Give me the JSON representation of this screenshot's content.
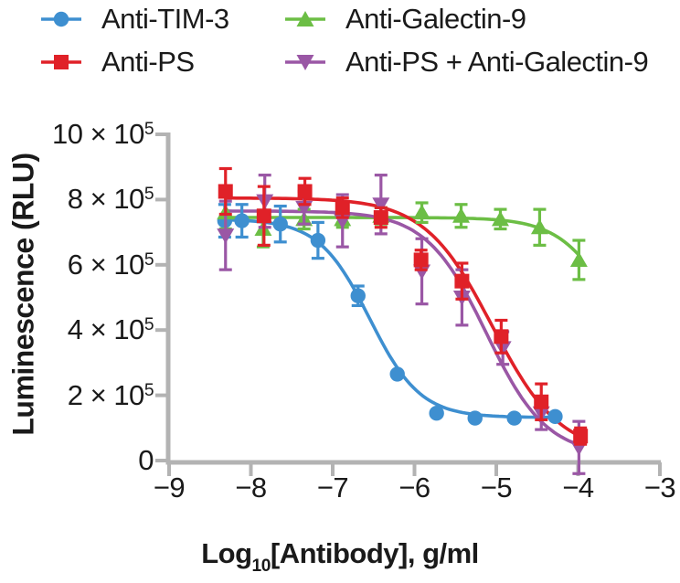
{
  "figure": {
    "background": "#ffffff",
    "text_color": "#1a1a1a",
    "axis_color": "#b3b3b3"
  },
  "legend": {
    "items": [
      {
        "label": "Anti-TIM-3",
        "color": "#3e8fd0",
        "marker": "circle"
      },
      {
        "label": "Anti-PS",
        "color": "#e02128",
        "marker": "square"
      },
      {
        "label": "Anti-Galectin-9",
        "color": "#6cbe45",
        "marker": "triangle-up"
      },
      {
        "label": "Anti-PS + Anti-Galectin-9",
        "color": "#9a57a5",
        "marker": "triangle-down"
      }
    ]
  },
  "axes": {
    "x": {
      "title": {
        "prefix": "Log",
        "sub": "10",
        "rest": "[Antibody], g/ml"
      },
      "min": -9,
      "max": -3,
      "ticks": [
        {
          "label": "−9",
          "value": -9
        },
        {
          "label": "−8",
          "value": -8
        },
        {
          "label": "−7",
          "value": -7
        },
        {
          "label": "−6",
          "value": -6
        },
        {
          "label": "−5",
          "value": -5
        },
        {
          "label": "−4",
          "value": -4
        },
        {
          "label": "−3",
          "value": -3
        }
      ]
    },
    "y": {
      "title": "Luminescence (RLU)",
      "min": 0,
      "max": 1000000,
      "ticks": [
        {
          "main": "10 × 10",
          "sup": "5",
          "value": 1000000
        },
        {
          "main": "8 × 10",
          "sup": "5",
          "value": 800000
        },
        {
          "main": "6 × 10",
          "sup": "5",
          "value": 600000
        },
        {
          "main": "4 × 10",
          "sup": "5",
          "value": 400000
        },
        {
          "main": "2 × 10",
          "sup": "5",
          "value": 200000
        },
        {
          "main": "0",
          "sup": "",
          "value": 0
        }
      ]
    }
  },
  "chart_data": {
    "type": "line",
    "title": "",
    "xlabel": "Log10[Antibody], g/ml",
    "ylabel": "Luminescence (RLU)",
    "xlim": [
      -9,
      -3
    ],
    "ylim": [
      0,
      1000000
    ],
    "grid": false,
    "legend_position": "top",
    "draw_order": [
      0,
      2,
      3,
      1
    ],
    "series": [
      {
        "name": "Anti-TIM-3",
        "color": "#3e8fd0",
        "marker": "circle",
        "x": [
          -8.32,
          -8.11,
          -7.64,
          -7.18,
          -6.69,
          -6.21,
          -5.73,
          -5.26,
          -4.78,
          -4.28
        ],
        "y": [
          735000,
          735000,
          725000,
          675000,
          505000,
          265000,
          145000,
          130000,
          130000,
          135000
        ],
        "err": [
          50000,
          50000,
          55000,
          55000,
          30000,
          0,
          0,
          0,
          0,
          0
        ],
        "fit": {
          "top": 740000,
          "bottom": 132000,
          "logec50": -6.55,
          "hill": 1.4,
          "range": [
            -8.32,
            -4.28
          ]
        }
      },
      {
        "name": "Anti-PS",
        "color": "#e02128",
        "marker": "square",
        "x": [
          -8.31,
          -7.84,
          -7.34,
          -6.88,
          -6.41,
          -5.92,
          -5.42,
          -4.94,
          -4.45,
          -3.97
        ],
        "y": [
          825000,
          750000,
          825000,
          775000,
          745000,
          615000,
          550000,
          380000,
          180000,
          75000
        ],
        "err": [
          70000,
          90000,
          40000,
          30000,
          30000,
          30000,
          55000,
          50000,
          55000,
          25000
        ],
        "fit": {
          "top": 805000,
          "bottom": 20000,
          "logec50": -5.05,
          "hill": 1.05,
          "range": [
            -8.31,
            -3.97
          ]
        }
      },
      {
        "name": "Anti-Galectin-9",
        "color": "#6cbe45",
        "marker": "triangle-up",
        "x": [
          -8.31,
          -7.85,
          -7.35,
          -6.88,
          -6.41,
          -5.91,
          -5.43,
          -4.95,
          -4.47,
          -3.99
        ],
        "y": [
          760000,
          710000,
          740000,
          740000,
          750000,
          760000,
          750000,
          740000,
          715000,
          615000
        ],
        "err": [
          50000,
          55000,
          30000,
          25000,
          25000,
          30000,
          35000,
          30000,
          55000,
          60000
        ],
        "fit": {
          "top": 745000,
          "bottom": 200000,
          "logec50": -3.55,
          "hill": 1.3,
          "range": [
            -8.31,
            -3.99
          ]
        }
      },
      {
        "name": "Anti-PS + Anti-Galectin-9",
        "color": "#9a57a5",
        "marker": "triangle-down",
        "x": [
          -8.31,
          -7.83,
          -7.35,
          -6.88,
          -6.41,
          -5.91,
          -5.42,
          -4.92,
          -4.45,
          -3.99
        ],
        "y": [
          690000,
          795000,
          775000,
          735000,
          785000,
          580000,
          500000,
          345000,
          145000,
          40000
        ],
        "err": [
          105000,
          80000,
          50000,
          80000,
          90000,
          100000,
          85000,
          50000,
          50000,
          80000
        ],
        "fit": {
          "top": 765000,
          "bottom": 15000,
          "logec50": -5.12,
          "hill": 1.18,
          "range": [
            -8.31,
            -3.99
          ]
        }
      }
    ]
  }
}
